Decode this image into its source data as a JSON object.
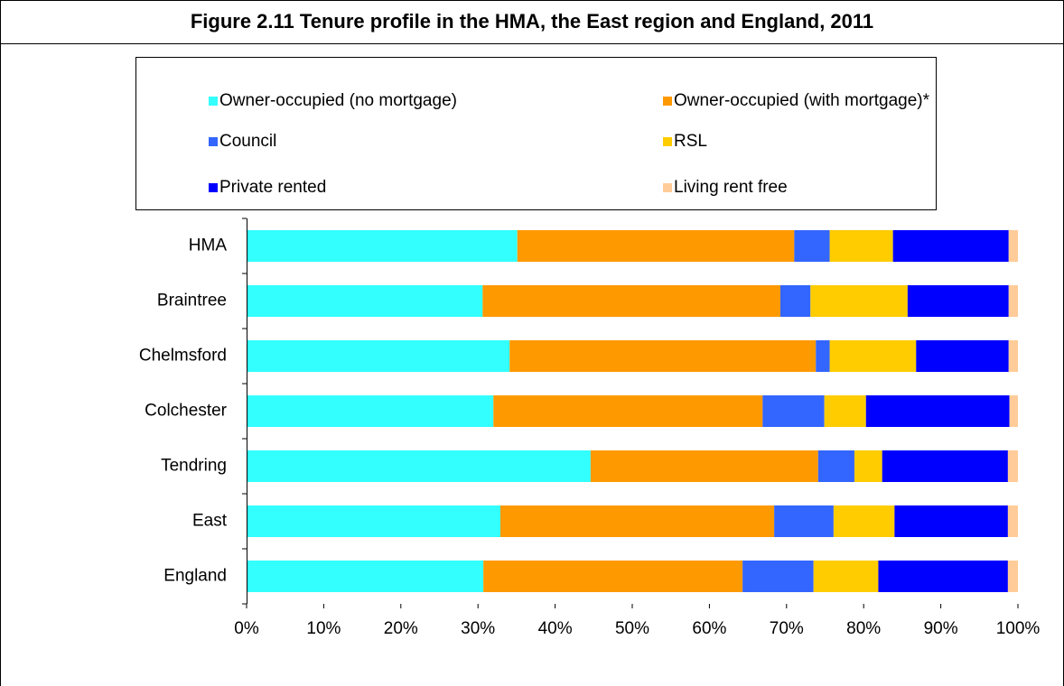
{
  "chart_data": {
    "type": "stacked_barh",
    "title": "Figure 2.11 Tenure profile in the HMA, the East region and England, 2011",
    "categories": [
      "HMA",
      "Braintree",
      "Chelmsford",
      "Colchester",
      "Tendring",
      "East",
      "England"
    ],
    "series": [
      {
        "name": "Owner-occupied (no mortgage)",
        "color": "#33ffff",
        "values": [
          35.1,
          30.6,
          34.1,
          32.0,
          44.6,
          32.9,
          30.7
        ]
      },
      {
        "name": "Owner-occupied (with mortgage)*",
        "color": "#ff9900",
        "values": [
          35.9,
          38.6,
          39.7,
          34.9,
          29.5,
          35.5,
          33.6
        ]
      },
      {
        "name": "Council",
        "color": "#3366ff",
        "values": [
          4.6,
          3.9,
          1.8,
          8.0,
          4.7,
          7.7,
          9.2
        ]
      },
      {
        "name": "RSL",
        "color": "#ffcc00",
        "values": [
          8.2,
          12.6,
          11.2,
          5.4,
          3.6,
          7.9,
          8.4
        ]
      },
      {
        "name": "Private rented",
        "color": "#0000ff",
        "values": [
          15.0,
          13.1,
          12.0,
          18.6,
          16.3,
          14.7,
          16.8
        ]
      },
      {
        "name": "Living rent free",
        "color": "#ffcc99",
        "values": [
          1.2,
          1.2,
          1.2,
          1.1,
          1.3,
          1.3,
          1.3
        ]
      }
    ],
    "xlim": [
      0,
      100
    ],
    "xticks": [
      {
        "value": 0,
        "label": "0%"
      },
      {
        "value": 10,
        "label": "10%"
      },
      {
        "value": 20,
        "label": "20%"
      },
      {
        "value": 30,
        "label": "30%"
      },
      {
        "value": 40,
        "label": "40%"
      },
      {
        "value": 50,
        "label": "50%"
      },
      {
        "value": 60,
        "label": "60%"
      },
      {
        "value": 70,
        "label": "70%"
      },
      {
        "value": 80,
        "label": "80%"
      },
      {
        "value": 90,
        "label": "90%"
      },
      {
        "value": 100,
        "label": "100%"
      }
    ]
  }
}
